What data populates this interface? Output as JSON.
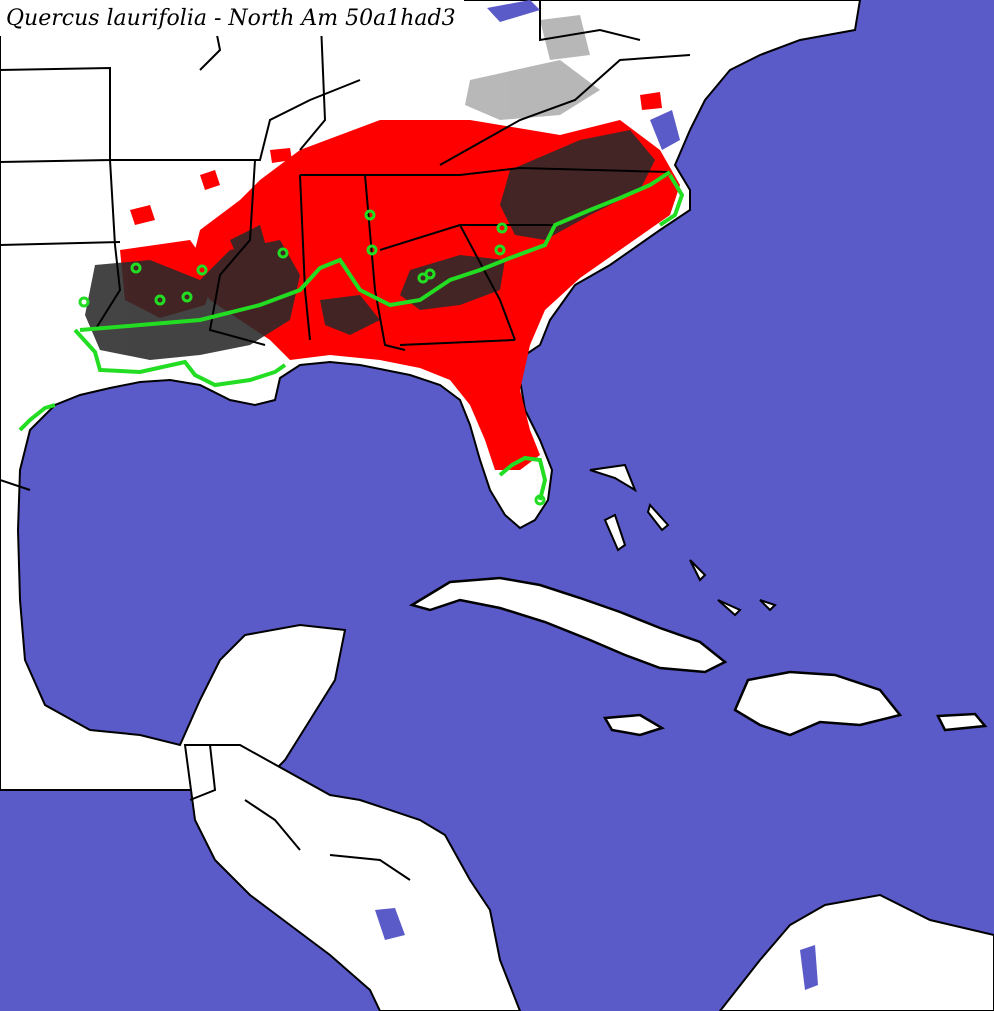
{
  "map": {
    "title": "Quercus laurifolia - North Am 50a1had3",
    "layers": [
      {
        "name": "ocean",
        "color": "#5a5ac8"
      },
      {
        "name": "land",
        "color": "#ffffff"
      },
      {
        "name": "predicted-range",
        "color": "#ff0000"
      },
      {
        "name": "secondary-suitability",
        "color": "#2a2a2a"
      },
      {
        "name": "occurrence-boundary",
        "color": "#22dd22"
      },
      {
        "name": "political-borders",
        "color": "#000000"
      }
    ]
  }
}
